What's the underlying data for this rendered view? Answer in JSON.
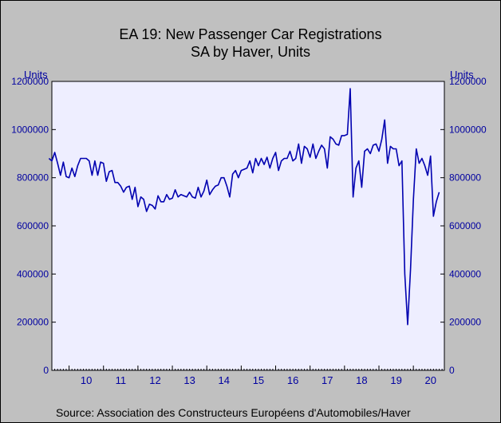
{
  "chart_data": {
    "type": "line",
    "title": "EA 19: New Passenger Car Registrations",
    "subtitle": "SA by Haver, Units",
    "ylabel_left": "Units",
    "ylabel_right": "Units",
    "source": "Source:   Association des Constructeurs Européens d'Automobiles/Haver",
    "ylim": [
      0,
      1200000
    ],
    "yticks": [
      "0",
      "200000",
      "400000",
      "600000",
      "800000",
      "1000000",
      "1200000"
    ],
    "ytick_values": [
      0,
      200000,
      400000,
      600000,
      800000,
      1000000,
      1200000
    ],
    "xlim": [
      2009.5,
      2020.9
    ],
    "xticks": [
      "10",
      "11",
      "12",
      "13",
      "14",
      "15",
      "16",
      "17",
      "18",
      "19",
      "20"
    ],
    "grid": false,
    "line_color": "#0000b0",
    "series": [
      {
        "x_start": "2009-06",
        "frequency": "monthly",
        "values": [
          880000,
          870000,
          905000,
          860000,
          810000,
          865000,
          805000,
          800000,
          840000,
          805000,
          850000,
          880000,
          880000,
          880000,
          870000,
          810000,
          870000,
          810000,
          865000,
          860000,
          785000,
          825000,
          830000,
          780000,
          780000,
          765000,
          740000,
          760000,
          765000,
          710000,
          760000,
          680000,
          720000,
          710000,
          660000,
          690000,
          685000,
          670000,
          725000,
          700000,
          700000,
          730000,
          710000,
          715000,
          750000,
          720000,
          730000,
          725000,
          720000,
          740000,
          720000,
          715000,
          760000,
          720000,
          745000,
          790000,
          730000,
          750000,
          765000,
          770000,
          800000,
          800000,
          765000,
          720000,
          815000,
          830000,
          800000,
          830000,
          835000,
          840000,
          870000,
          820000,
          880000,
          850000,
          880000,
          855000,
          885000,
          840000,
          880000,
          905000,
          830000,
          870000,
          880000,
          880000,
          910000,
          870000,
          880000,
          940000,
          860000,
          930000,
          920000,
          885000,
          940000,
          880000,
          910000,
          935000,
          920000,
          840000,
          970000,
          960000,
          940000,
          935000,
          975000,
          975000,
          980000,
          1170000,
          720000,
          840000,
          870000,
          760000,
          910000,
          920000,
          900000,
          935000,
          940000,
          910000,
          960000,
          1040000,
          860000,
          930000,
          920000,
          920000,
          850000,
          870000,
          400000,
          190000,
          420000,
          710000,
          920000,
          860000,
          880000,
          850000,
          810000,
          890000,
          640000,
          700000,
          740000
        ]
      }
    ]
  }
}
